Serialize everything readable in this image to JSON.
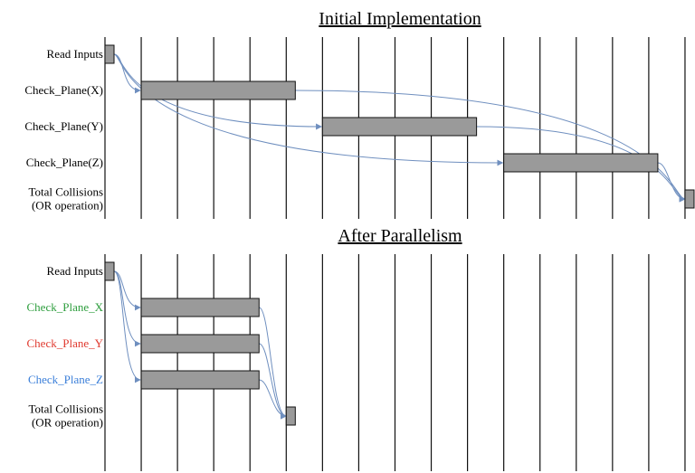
{
  "colors": {
    "arrow": "#6f8fbf",
    "bar_fill": "#9a9a9a",
    "bar_stroke": "#111111",
    "label_default": "#000000",
    "label_green": "#2e9e3e",
    "label_red": "#e03a2f",
    "label_blue": "#3b7fd9"
  },
  "panels": [
    {
      "title": "Initial Implementation",
      "rows": [
        {
          "label_lines": [
            "Read Inputs"
          ],
          "color": "label_default"
        },
        {
          "label_lines": [
            "Check_Plane(X)"
          ],
          "color": "label_default"
        },
        {
          "label_lines": [
            "Check_Plane(Y)"
          ],
          "color": "label_default"
        },
        {
          "label_lines": [
            "Check_Plane(Z)"
          ],
          "color": "label_default"
        },
        {
          "label_lines": [
            "Total Collisions",
            "(OR operation)"
          ],
          "color": "label_default"
        }
      ],
      "tasks": [
        {
          "row": 0,
          "start": 0.0,
          "end": 0.25
        },
        {
          "row": 1,
          "start": 1.0,
          "end": 5.25
        },
        {
          "row": 2,
          "start": 6.0,
          "end": 10.25
        },
        {
          "row": 3,
          "start": 11.0,
          "end": 15.25
        },
        {
          "row": 4,
          "start": 16.0,
          "end": 16.25
        }
      ],
      "dependencies": [
        [
          0,
          1
        ],
        [
          0,
          2
        ],
        [
          0,
          3
        ],
        [
          1,
          4
        ],
        [
          2,
          4
        ],
        [
          3,
          4
        ]
      ]
    },
    {
      "title": "After Parallelism",
      "rows": [
        {
          "label_lines": [
            "Read Inputs"
          ],
          "color": "label_default"
        },
        {
          "label_lines": [
            "Check_Plane_X"
          ],
          "color": "label_green"
        },
        {
          "label_lines": [
            "Check_Plane_Y"
          ],
          "color": "label_red"
        },
        {
          "label_lines": [
            "Check_Plane_Z"
          ],
          "color": "label_blue"
        },
        {
          "label_lines": [
            "Total Collisions",
            "(OR operation)"
          ],
          "color": "label_default"
        }
      ],
      "tasks": [
        {
          "row": 0,
          "start": 0.0,
          "end": 0.25
        },
        {
          "row": 1,
          "start": 1.0,
          "end": 4.25
        },
        {
          "row": 2,
          "start": 1.0,
          "end": 4.25
        },
        {
          "row": 3,
          "start": 1.0,
          "end": 4.25
        },
        {
          "row": 4,
          "start": 5.0,
          "end": 5.25
        }
      ],
      "dependencies": [
        [
          0,
          1
        ],
        [
          0,
          2
        ],
        [
          0,
          3
        ],
        [
          1,
          4
        ],
        [
          2,
          4
        ],
        [
          3,
          4
        ]
      ]
    }
  ],
  "timeline": {
    "columns": 16
  }
}
